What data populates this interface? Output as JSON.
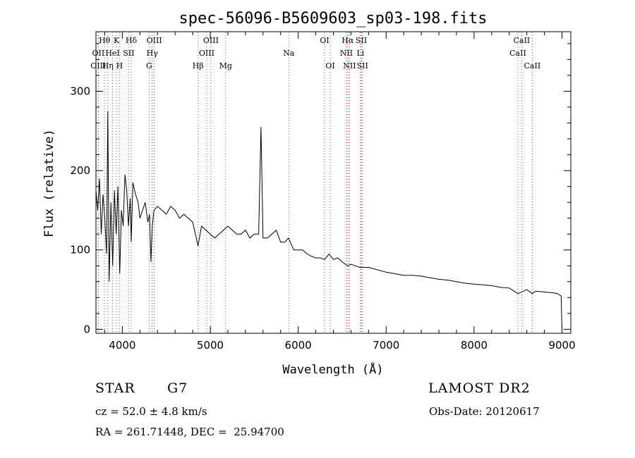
{
  "chart_data": {
    "type": "line",
    "title": "spec-56096-B5609603_sp03-198.fits",
    "xlabel": "Wavelength (Å)",
    "ylabel": "Flux (relative)",
    "xlim": [
      3700,
      9100
    ],
    "ylim": [
      -5,
      375
    ],
    "x_ticks": [
      4000,
      5000,
      6000,
      7000,
      8000,
      9000
    ],
    "y_ticks": [
      0,
      100,
      200,
      300
    ],
    "grid": false,
    "series": [
      {
        "x": [
          3700,
          3720,
          3740,
          3760,
          3780,
          3800,
          3820,
          3835,
          3850,
          3870,
          3890,
          3910,
          3930,
          3950,
          3970,
          3990,
          4010,
          4030,
          4050,
          4070,
          4090,
          4101,
          4120,
          4150,
          4180,
          4200,
          4230,
          4260,
          4290,
          4310,
          4325,
          4340,
          4360,
          4400,
          4450,
          4500,
          4550,
          4600,
          4650,
          4700,
          4750,
          4800,
          4861,
          4900,
          4950,
          5000,
          5050,
          5100,
          5150,
          5200,
          5250,
          5300,
          5350,
          5400,
          5450,
          5500,
          5550,
          5577,
          5600,
          5650,
          5700,
          5750,
          5800,
          5850,
          5890,
          5950,
          6000,
          6050,
          6100,
          6150,
          6200,
          6250,
          6300,
          6350,
          6400,
          6450,
          6500,
          6563,
          6600,
          6650,
          6700,
          6750,
          6800,
          6900,
          7000,
          7100,
          7200,
          7300,
          7400,
          7500,
          7600,
          7700,
          7800,
          7900,
          8000,
          8100,
          8200,
          8300,
          8400,
          8498,
          8542,
          8600,
          8662,
          8700,
          8800,
          8900,
          8950,
          8990,
          9000
        ],
        "y": [
          175,
          150,
          190,
          120,
          170,
          140,
          95,
          275,
          60,
          160,
          80,
          175,
          120,
          180,
          70,
          150,
          130,
          195,
          175,
          130,
          165,
          110,
          185,
          170,
          160,
          140,
          150,
          160,
          135,
          145,
          85,
          130,
          150,
          155,
          150,
          145,
          155,
          150,
          140,
          145,
          140,
          135,
          105,
          130,
          125,
          120,
          115,
          120,
          125,
          130,
          125,
          120,
          120,
          125,
          115,
          120,
          120,
          255,
          115,
          115,
          120,
          125,
          110,
          110,
          115,
          100,
          100,
          100,
          95,
          92,
          90,
          90,
          88,
          95,
          88,
          90,
          85,
          80,
          82,
          80,
          78,
          78,
          78,
          75,
          72,
          70,
          68,
          68,
          67,
          65,
          63,
          62,
          60,
          58,
          57,
          56,
          55,
          53,
          52,
          45,
          47,
          50,
          45,
          48,
          47,
          46,
          45,
          42,
          0
        ]
      }
    ],
    "lines": [
      {
        "label": "Hθ",
        "x": 3798,
        "row": 0
      },
      {
        "label": "K",
        "x": 3934,
        "row": 0
      },
      {
        "label": "Hδ",
        "x": 4101,
        "row": 0
      },
      {
        "label": "OIII",
        "x": 4363,
        "row": 0
      },
      {
        "label": "OIII",
        "x": 5007,
        "row": 0
      },
      {
        "label": "OI",
        "x": 6300,
        "row": 0
      },
      {
        "label": "Hα",
        "x": 6563,
        "row": 0
      },
      {
        "label": "SII",
        "x": 6717,
        "row": 0
      },
      {
        "label": "CaII",
        "x": 8542,
        "row": 0
      },
      {
        "label": "OII",
        "x": 3727,
        "row": 1
      },
      {
        "label": "HeI",
        "x": 3889,
        "row": 1
      },
      {
        "label": "SII",
        "x": 4072,
        "row": 1
      },
      {
        "label": "Hγ",
        "x": 4340,
        "row": 1
      },
      {
        "label": "OIII",
        "x": 4959,
        "row": 1
      },
      {
        "label": "Na",
        "x": 5893,
        "row": 1
      },
      {
        "label": "NII",
        "x": 6548,
        "row": 1
      },
      {
        "label": "Li",
        "x": 6708,
        "row": 1
      },
      {
        "label": "CaII",
        "x": 8498,
        "row": 1
      },
      {
        "label": "OIII",
        "x": 3726,
        "row": 2
      },
      {
        "label": "Hη",
        "x": 3835,
        "row": 2
      },
      {
        "label": "H",
        "x": 3968,
        "row": 2
      },
      {
        "label": "G",
        "x": 4305,
        "row": 2
      },
      {
        "label": "Hβ",
        "x": 4861,
        "row": 2
      },
      {
        "label": "Mg",
        "x": 5175,
        "row": 2
      },
      {
        "label": "OI",
        "x": 6364,
        "row": 2
      },
      {
        "label": "NII",
        "x": 6584,
        "row": 2
      },
      {
        "label": "SII",
        "x": 6731,
        "row": 2
      },
      {
        "label": "CaII",
        "x": 8662,
        "row": 2
      }
    ]
  },
  "info": {
    "class_label": "STAR",
    "subclass": "G7",
    "survey": "LAMOST DR2",
    "cz": "cz = 52.0 ± 4.8 km/s",
    "obs_date": "Obs-Date: 20120617",
    "coords": "RA = 261.71448, DEC =  25.94700"
  }
}
